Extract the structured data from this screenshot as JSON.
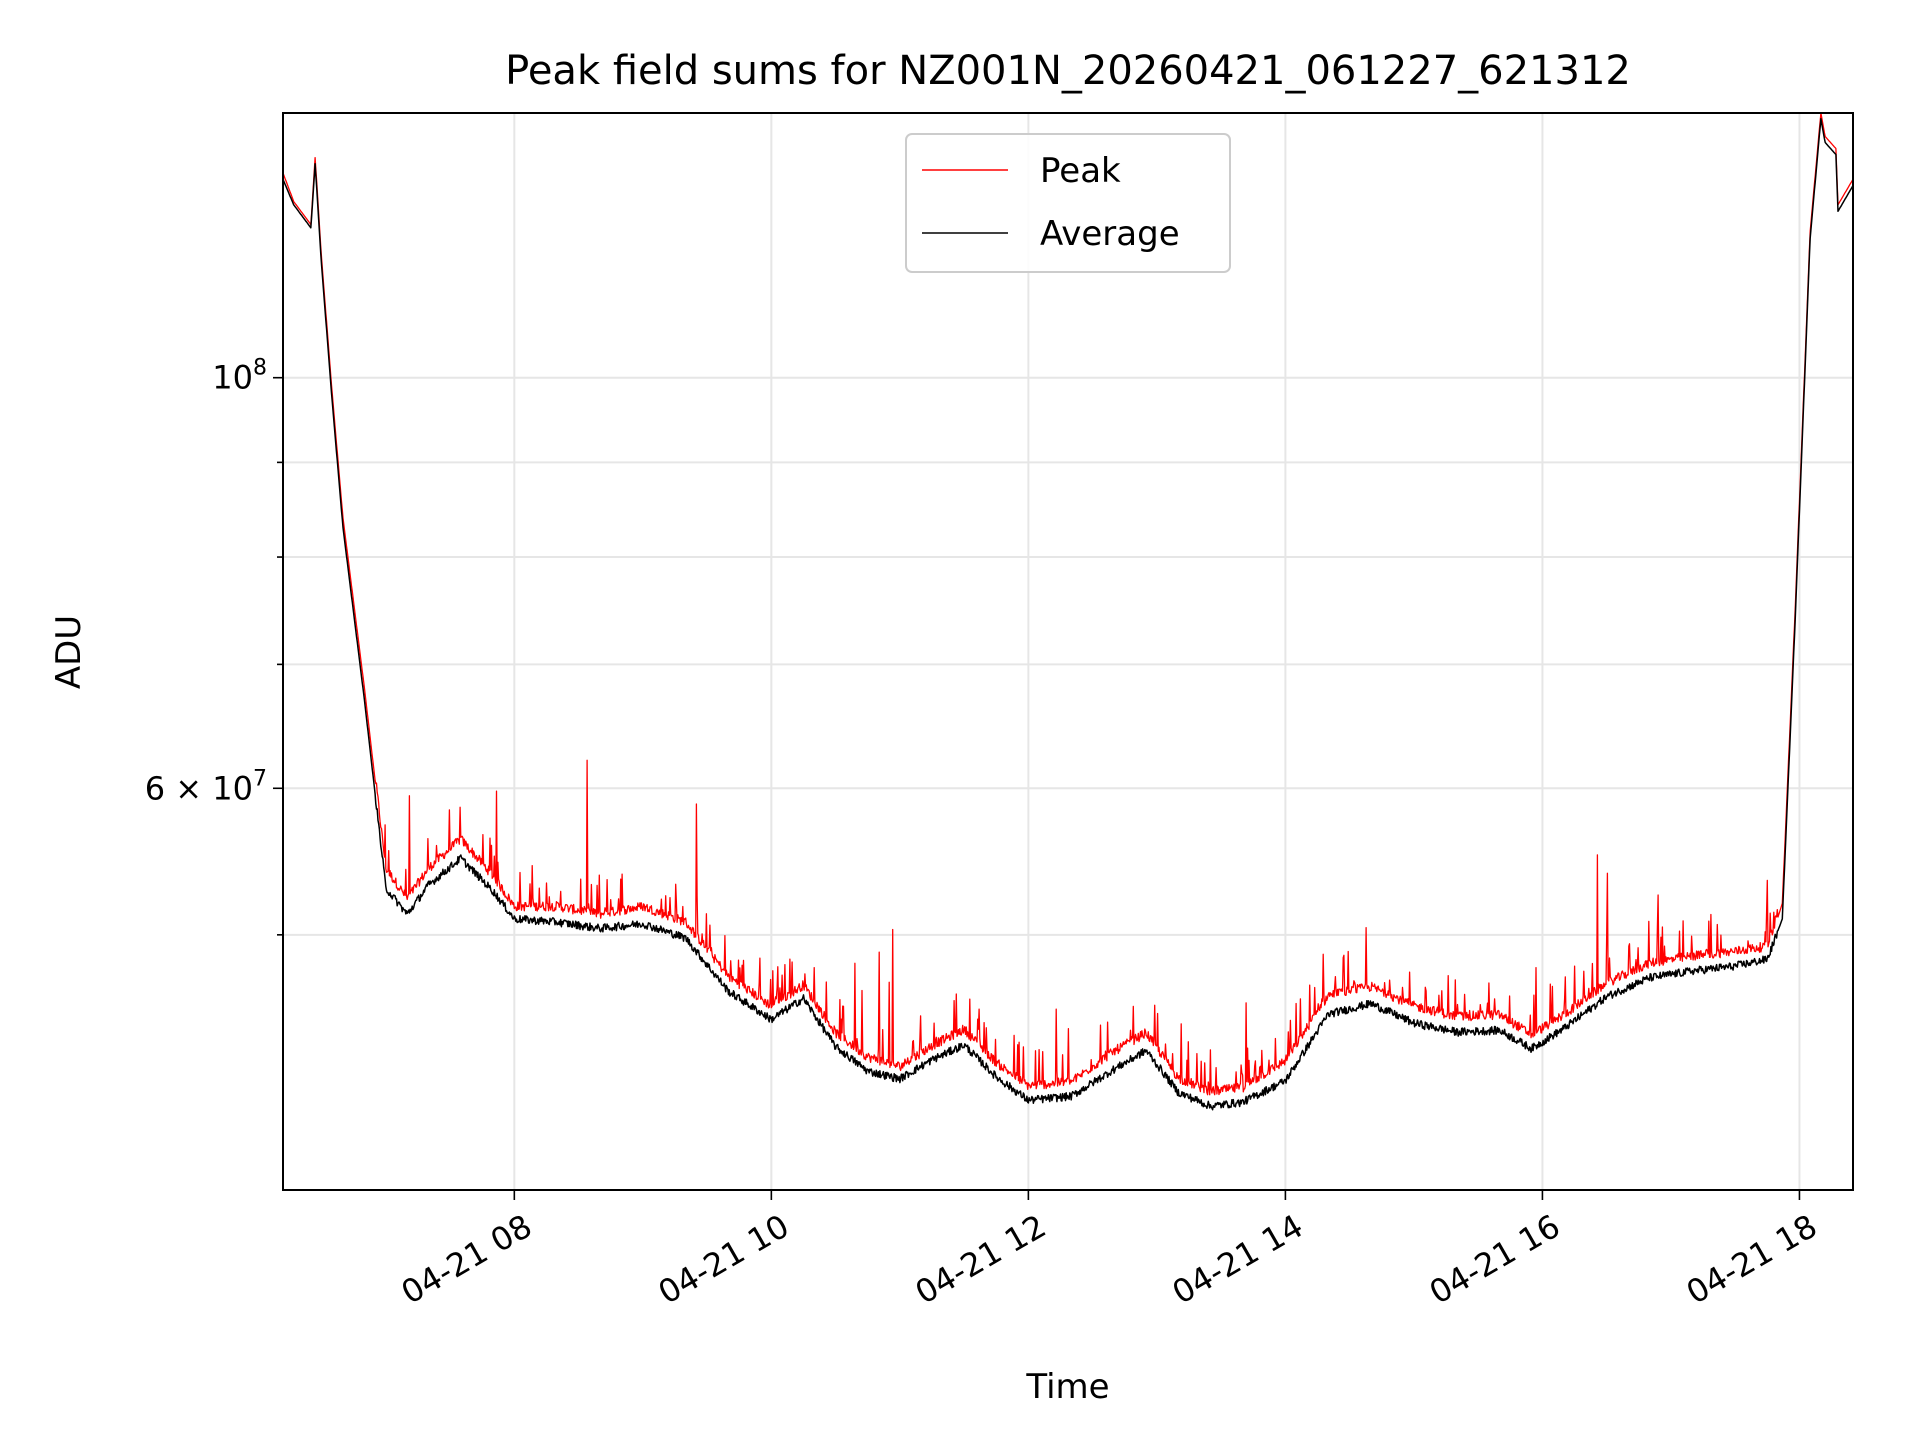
{
  "chart_data": {
    "type": "line",
    "title": "Peak field sums for NZ001N_20260421_061227_621312",
    "xlabel": "Time",
    "ylabel": "ADU",
    "x_axis_type": "datetime",
    "y_scale": "log",
    "xlim": [
      "2026-04-21 06:12",
      "2026-04-21 18:25"
    ],
    "ylim": [
      36400000,
      139000000
    ],
    "x_ticks": [
      {
        "value": "2026-04-21 08:00",
        "label": "04-21 08"
      },
      {
        "value": "2026-04-21 10:00",
        "label": "04-21 10"
      },
      {
        "value": "2026-04-21 12:00",
        "label": "04-21 12"
      },
      {
        "value": "2026-04-21 14:00",
        "label": "04-21 14"
      },
      {
        "value": "2026-04-21 16:00",
        "label": "04-21 16"
      },
      {
        "value": "2026-04-21 18:00",
        "label": "04-21 18"
      }
    ],
    "y_major_ticks": [
      {
        "value": 100000000,
        "base": "10",
        "exp": "8",
        "mult": ""
      },
      {
        "value": 60000000,
        "base": "10",
        "exp": "7",
        "mult": "6 × "
      }
    ],
    "y_minor_ticks": [
      50000000,
      70000000,
      80000000,
      90000000
    ],
    "grid": true,
    "legend_position": "upper-center",
    "series": [
      {
        "name": "Peak",
        "color": "#ff0000",
        "noise_note": "spiky upper envelope",
        "x": [
          "2026-04-21 06:12",
          "2026-04-21 06:17",
          "2026-04-21 06:25",
          "2026-04-21 06:27",
          "2026-04-21 06:30",
          "2026-04-21 06:35",
          "2026-04-21 06:40",
          "2026-04-21 06:50",
          "2026-04-21 07:00",
          "2026-04-21 07:10",
          "2026-04-21 07:20",
          "2026-04-21 07:35",
          "2026-04-21 07:50",
          "2026-04-21 08:00",
          "2026-04-21 08:20",
          "2026-04-21 08:40",
          "2026-04-21 09:00",
          "2026-04-21 09:20",
          "2026-04-21 09:40",
          "2026-04-21 10:00",
          "2026-04-21 10:15",
          "2026-04-21 10:30",
          "2026-04-21 10:45",
          "2026-04-21 11:00",
          "2026-04-21 11:15",
          "2026-04-21 11:30",
          "2026-04-21 11:45",
          "2026-04-21 12:00",
          "2026-04-21 12:20",
          "2026-04-21 12:40",
          "2026-04-21 12:55",
          "2026-04-21 13:10",
          "2026-04-21 13:25",
          "2026-04-21 13:40",
          "2026-04-21 14:00",
          "2026-04-21 14:20",
          "2026-04-21 14:40",
          "2026-04-21 15:00",
          "2026-04-21 15:20",
          "2026-04-21 15:40",
          "2026-04-21 15:55",
          "2026-04-21 16:10",
          "2026-04-21 16:30",
          "2026-04-21 16:50",
          "2026-04-21 17:10",
          "2026-04-21 17:30",
          "2026-04-21 17:45",
          "2026-04-21 17:52",
          "2026-04-21 17:58",
          "2026-04-21 18:05",
          "2026-04-21 18:10",
          "2026-04-21 18:12",
          "2026-04-21 18:17",
          "2026-04-21 18:18",
          "2026-04-21 18:25"
        ],
        "y": [
          129000000,
          124500000,
          121000000,
          131500000,
          116000000,
          98000000,
          84000000,
          68000000,
          54000000,
          52000000,
          54000000,
          56000000,
          53500000,
          51500000,
          51500000,
          51000000,
          51500000,
          50500000,
          47200000,
          45500000,
          46700000,
          44000000,
          42700000,
          42200000,
          43300000,
          44200000,
          42400000,
          41200000,
          41400000,
          43000000,
          44000000,
          41600000,
          40900000,
          41100000,
          42500000,
          46100000,
          46600000,
          45500000,
          44900000,
          45000000,
          43900000,
          45000000,
          46800000,
          48000000,
          48400000,
          48700000,
          49000000,
          52000000,
          75000000,
          120000000,
          139000000,
          135000000,
          133000000,
          124000000,
          128000000
        ]
      },
      {
        "name": "Average",
        "color": "#000000",
        "x": [
          "2026-04-21 06:12",
          "2026-04-21 06:17",
          "2026-04-21 06:25",
          "2026-04-21 06:27",
          "2026-04-21 06:30",
          "2026-04-21 06:35",
          "2026-04-21 06:40",
          "2026-04-21 06:50",
          "2026-04-21 07:00",
          "2026-04-21 07:10",
          "2026-04-21 07:20",
          "2026-04-21 07:35",
          "2026-04-21 07:50",
          "2026-04-21 08:00",
          "2026-04-21 08:20",
          "2026-04-21 08:40",
          "2026-04-21 09:00",
          "2026-04-21 09:20",
          "2026-04-21 09:40",
          "2026-04-21 10:00",
          "2026-04-21 10:15",
          "2026-04-21 10:30",
          "2026-04-21 10:45",
          "2026-04-21 11:00",
          "2026-04-21 11:15",
          "2026-04-21 11:30",
          "2026-04-21 11:45",
          "2026-04-21 12:00",
          "2026-04-21 12:20",
          "2026-04-21 12:40",
          "2026-04-21 12:55",
          "2026-04-21 13:10",
          "2026-04-21 13:25",
          "2026-04-21 13:40",
          "2026-04-21 14:00",
          "2026-04-21 14:20",
          "2026-04-21 14:40",
          "2026-04-21 15:00",
          "2026-04-21 15:20",
          "2026-04-21 15:40",
          "2026-04-21 15:55",
          "2026-04-21 16:10",
          "2026-04-21 16:30",
          "2026-04-21 16:50",
          "2026-04-21 17:10",
          "2026-04-21 17:30",
          "2026-04-21 17:45",
          "2026-04-21 17:52",
          "2026-04-21 17:58",
          "2026-04-21 18:05",
          "2026-04-21 18:10",
          "2026-04-21 18:12",
          "2026-04-21 18:17",
          "2026-04-21 18:18",
          "2026-04-21 18:25"
        ],
        "y": [
          128000000,
          124000000,
          120500000,
          130500000,
          115000000,
          97000000,
          83000000,
          67000000,
          53000000,
          51300000,
          53200000,
          55000000,
          52800000,
          51000000,
          50800000,
          50400000,
          50700000,
          49800000,
          46600000,
          45000000,
          46200000,
          43500000,
          42200000,
          41800000,
          42800000,
          43600000,
          41900000,
          40700000,
          40900000,
          42300000,
          43300000,
          41100000,
          40400000,
          40600000,
          41700000,
          45300000,
          45900000,
          44800000,
          44300000,
          44400000,
          43400000,
          44500000,
          46300000,
          47400000,
          47800000,
          48100000,
          48500000,
          51000000,
          74000000,
          119000000,
          138000000,
          134000000,
          132000000,
          123000000,
          127000000
        ]
      }
    ]
  }
}
